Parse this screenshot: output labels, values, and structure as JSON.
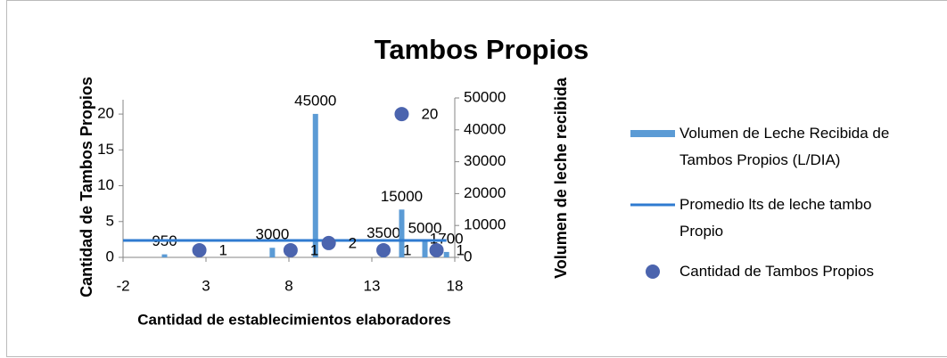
{
  "chart_data": {
    "type": "combo",
    "title": "Tambos Propios",
    "x_label": "Cantidad de establecimientos elaboradores",
    "y_label": "Cantidad de Tambos Propios",
    "y2_label": "Volumen de leche recibida",
    "xlim": [
      -2,
      18
    ],
    "xticks": [
      -2,
      3,
      8,
      13,
      18
    ],
    "ylim": [
      0,
      22
    ],
    "yticks": [
      0,
      5,
      10,
      15,
      20
    ],
    "y2lim": [
      0,
      50000
    ],
    "y2ticks": [
      0,
      10000,
      20000,
      30000,
      40000,
      50000
    ],
    "legend": "right",
    "series": [
      {
        "name": "Volumen de Leche Recibida de Tambos Propios (L/DIA)",
        "type": "bar",
        "axis": "y2",
        "color": "#5b9bd5",
        "x": [
          0.5,
          7,
          9.6,
          13.7,
          14.8,
          16.2,
          17.5
        ],
        "values": [
          950,
          3000,
          45000,
          3500,
          15000,
          5000,
          1700
        ]
      },
      {
        "name": "Promedio lts de leche tambo Propio",
        "type": "line",
        "axis": "y2",
        "color": "#2f7bd0",
        "x": [
          -2,
          17.5
        ],
        "values": [
          5300,
          5300
        ]
      },
      {
        "name": "Cantidad de Tambos Propios",
        "type": "scatter",
        "color": "#4b64ae",
        "x": [
          2.6,
          8.1,
          10.4,
          13.7,
          14.8,
          16.9
        ],
        "values": [
          1,
          1,
          2,
          1,
          20,
          1
        ]
      }
    ]
  }
}
